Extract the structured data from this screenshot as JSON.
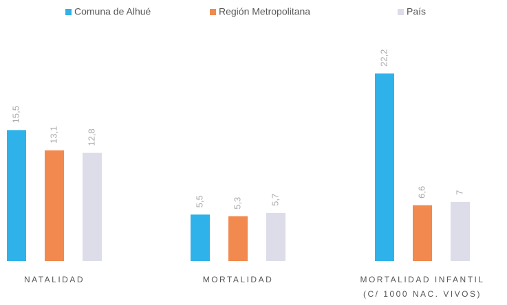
{
  "chart_data": {
    "type": "bar",
    "categories": [
      "NATALIDAD",
      "MORTALIDAD",
      "MORTALIDAD INFANTIL\n(C/ 1000 NAC. VIVOS)"
    ],
    "series": [
      {
        "name": "Comuna de Alhué",
        "color": "#2fb2ea",
        "values": [
          15.5,
          5.5,
          22.2
        ],
        "value_labels": [
          "15,5",
          "5,5",
          "22,2"
        ]
      },
      {
        "name": "Región Metropolitana",
        "color": "#f2894e",
        "values": [
          13.1,
          5.3,
          6.6
        ],
        "value_labels": [
          "13,1",
          "5,3",
          "6,6"
        ]
      },
      {
        "name": "País",
        "color": "#dcdde8",
        "values": [
          12.8,
          5.7,
          7
        ],
        "value_labels": [
          "12,8",
          "5,7",
          "7"
        ]
      }
    ],
    "legend": "top"
  }
}
